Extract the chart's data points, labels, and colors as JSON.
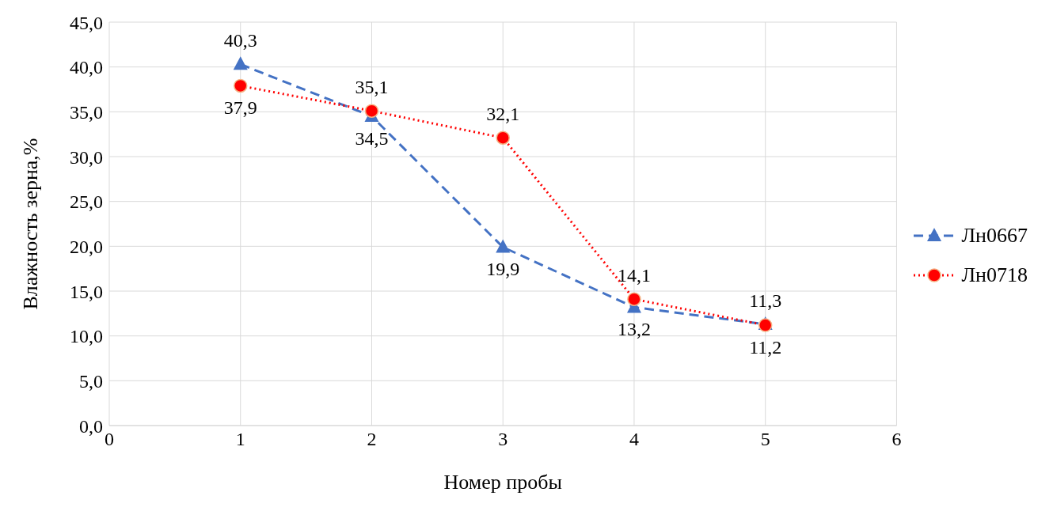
{
  "chart_data": {
    "type": "line",
    "xlabel": "Номер пробы",
    "ylabel": "Влажность зерна,%",
    "x": [
      1,
      2,
      3,
      4,
      5
    ],
    "series": [
      {
        "name": "Лн0667",
        "color": "#4472c4",
        "values": [
          40.3,
          34.5,
          19.9,
          13.2,
          11.3
        ],
        "value_labels": [
          "40,3",
          "34,5",
          "19,9",
          "13,2",
          "11,3"
        ],
        "marker": "triangle",
        "line_style": "dashed"
      },
      {
        "name": "Лн0718",
        "color": "#ff0000",
        "values": [
          37.9,
          35.1,
          32.1,
          14.1,
          11.2
        ],
        "value_labels": [
          "37,9",
          "35,1",
          "32,1",
          "14,1",
          "11,2"
        ],
        "marker": "circle",
        "line_style": "dotted"
      }
    ],
    "xlim": [
      0,
      6
    ],
    "xticks": [
      0,
      1,
      2,
      3,
      4,
      5,
      6
    ],
    "ylim": [
      0,
      45
    ],
    "yticks": [
      {
        "value": 0,
        "label": "0,0"
      },
      {
        "value": 5,
        "label": "5,0"
      },
      {
        "value": 10,
        "label": "10,0"
      },
      {
        "value": 15,
        "label": "15,0"
      },
      {
        "value": 20,
        "label": "20,0"
      },
      {
        "value": 25,
        "label": "25,0"
      },
      {
        "value": 30,
        "label": "30,0"
      },
      {
        "value": 35,
        "label": "35,0"
      },
      {
        "value": 40,
        "label": "40,0"
      },
      {
        "value": 45,
        "label": "45,0"
      }
    ],
    "grid": true,
    "legend": "right"
  }
}
